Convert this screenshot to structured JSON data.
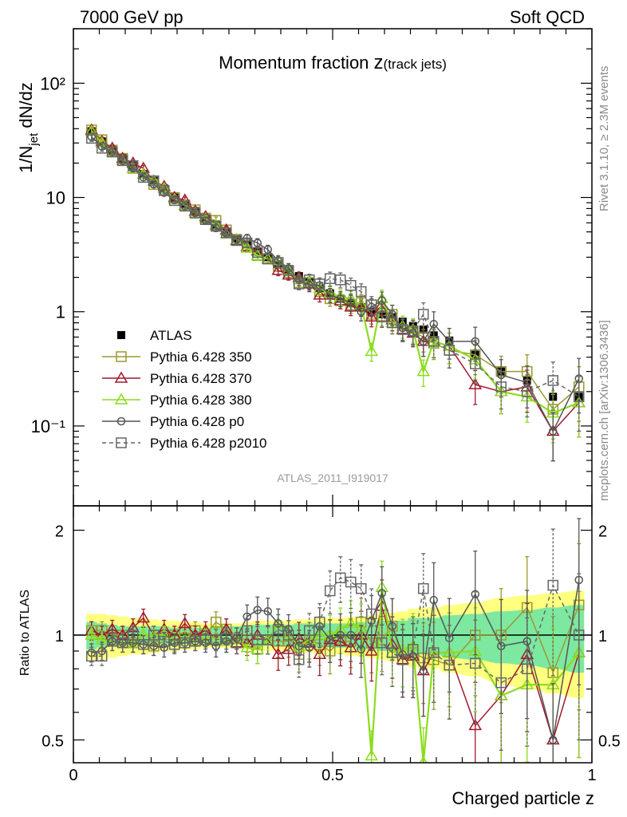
{
  "header": {
    "left_label": "7000 GeV pp",
    "right_label": "Soft QCD"
  },
  "side_labels": {
    "rivet": "Rivet 3.1.10, ≥ 2.3M events",
    "mcplots": "mcplots.cern.ch [arXiv:1306.3436]"
  },
  "chart_data": [
    {
      "type": "line",
      "title_main": "Momentum fraction ",
      "title_var": "z",
      "title_sub": "(track jets)",
      "ylabel_pre": "1/N",
      "ylabel_sub": "jet",
      "ylabel_post": " dN/dz",
      "yscale": "log",
      "ylim": [
        0.02,
        300
      ],
      "xlim": [
        0,
        1
      ],
      "y_tick_labels": [
        "10⁻¹",
        "1",
        "10",
        "10²"
      ],
      "watermark": "ATLAS_2011_I919017",
      "x": [
        0.035,
        0.055,
        0.075,
        0.095,
        0.115,
        0.135,
        0.155,
        0.175,
        0.195,
        0.215,
        0.235,
        0.255,
        0.275,
        0.295,
        0.315,
        0.335,
        0.355,
        0.375,
        0.395,
        0.415,
        0.435,
        0.455,
        0.475,
        0.495,
        0.515,
        0.535,
        0.555,
        0.575,
        0.595,
        0.615,
        0.635,
        0.655,
        0.675,
        0.695,
        0.725,
        0.775,
        0.825,
        0.875,
        0.925,
        0.975
      ],
      "series": [
        {
          "name": "ATLAS",
          "color": "#000000",
          "marker": "filled-square",
          "dashed": false,
          "values": [
            38,
            31,
            26,
            22,
            19,
            16,
            14,
            12,
            10,
            8.8,
            7.6,
            6.6,
            5.8,
            5.0,
            4.4,
            3.9,
            3.4,
            3.0,
            2.6,
            2.3,
            2.05,
            1.85,
            1.6,
            1.45,
            1.3,
            1.2,
            1.1,
            1.0,
            0.95,
            0.9,
            0.82,
            0.75,
            0.7,
            0.62,
            0.56,
            0.42,
            0.3,
            0.25,
            0.18,
            0.18
          ]
        },
        {
          "name": "Pythia 6.428 350",
          "color": "#9a9a30",
          "marker": "open-square",
          "dashed": false,
          "values": [
            39,
            32,
            26,
            22,
            18,
            15,
            13,
            11.5,
            10,
            8.6,
            7.8,
            6.6,
            6.3,
            5.2,
            4.3,
            3.8,
            3.1,
            2.9,
            2.5,
            2.2,
            1.8,
            1.8,
            1.5,
            1.3,
            1.25,
            1.15,
            1.2,
            0.95,
            0.92,
            0.95,
            0.7,
            0.67,
            0.6,
            0.53,
            0.46,
            0.42,
            0.3,
            0.3,
            0.14,
            0.22
          ]
        },
        {
          "name": "Pythia 6.428 370",
          "color": "#a0192c",
          "marker": "open-triangle",
          "dashed": false,
          "values": [
            39,
            31,
            27,
            22,
            20,
            18,
            14,
            12.5,
            10,
            9.5,
            7.6,
            6.8,
            5.7,
            5.2,
            4.2,
            3.7,
            3.4,
            2.9,
            2.3,
            2.1,
            2.0,
            1.75,
            1.4,
            1.4,
            1.25,
            1.1,
            1.1,
            0.9,
            1.15,
            0.85,
            0.7,
            0.65,
            0.55,
            0.55,
            0.5,
            0.23,
            0.2,
            0.22,
            0.09,
            0.16
          ]
        },
        {
          "name": "Pythia 6.428 380",
          "color": "#8bdc1e",
          "marker": "open-triangle",
          "dashed": false,
          "values": [
            38,
            30,
            25,
            21,
            18,
            16,
            14,
            12,
            9.6,
            8.5,
            7.3,
            6.5,
            5.7,
            4.8,
            4.3,
            3.6,
            3.1,
            2.9,
            2.8,
            2.3,
            1.9,
            1.8,
            1.6,
            1.45,
            1.35,
            1.3,
            1.15,
            0.45,
            1.3,
            0.8,
            0.75,
            0.7,
            0.3,
            0.55,
            0.5,
            0.38,
            0.2,
            0.18,
            0.13,
            0.16
          ]
        },
        {
          "name": "Pythia 6.428 p0",
          "color": "#555555",
          "marker": "open-circle",
          "dashed": false,
          "values": [
            34,
            28,
            25,
            21,
            18,
            15,
            13,
            11,
            9.5,
            8.4,
            7.3,
            6.3,
            5.4,
            4.8,
            4.3,
            4.4,
            4.0,
            3.5,
            2.8,
            2.4,
            1.9,
            1.7,
            1.7,
            1.4,
            1.3,
            1.2,
            1.0,
            1.1,
            1.25,
            0.95,
            0.72,
            0.65,
            0.55,
            0.78,
            0.55,
            0.55,
            0.28,
            0.24,
            0.09,
            0.26
          ]
        },
        {
          "name": "Pythia 6.428 p2010",
          "color": "#666666",
          "marker": "open-square",
          "dashed": true,
          "values": [
            33,
            27,
            25,
            21,
            19,
            15,
            14,
            11.5,
            9.4,
            8.4,
            7.3,
            6.4,
            5.6,
            4.9,
            4.2,
            4.0,
            3.3,
            2.9,
            2.7,
            2.3,
            1.75,
            1.9,
            1.75,
            1.95,
            1.9,
            1.7,
            1.5,
            1.15,
            0.9,
            0.8,
            0.7,
            0.68,
            0.95,
            0.55,
            0.46,
            0.35,
            0.22,
            0.2,
            0.25,
            0.18
          ]
        }
      ]
    },
    {
      "type": "line",
      "ylabel": "Ratio to ATLAS",
      "xlabel": "Charged particle z",
      "yscale": "log",
      "ylim": [
        0.43,
        2.35
      ],
      "xlim": [
        0,
        1
      ],
      "y_tick_labels": [
        "0.5",
        "1",
        "2"
      ],
      "x_tick_labels": [
        "0",
        "0.5",
        "1"
      ],
      "band_inner": [
        0.09,
        0.08,
        0.07,
        0.06,
        0.06,
        0.06,
        0.06,
        0.06,
        0.05,
        0.05,
        0.05,
        0.05,
        0.06,
        0.06,
        0.06,
        0.06,
        0.07,
        0.07,
        0.07,
        0.07,
        0.08,
        0.08,
        0.08,
        0.08,
        0.08,
        0.08,
        0.09,
        0.09,
        0.1,
        0.1,
        0.1,
        0.12,
        0.12,
        0.12,
        0.14,
        0.15,
        0.17,
        0.18,
        0.2,
        0.22
      ],
      "band_outer": [
        0.15,
        0.15,
        0.14,
        0.13,
        0.12,
        0.12,
        0.11,
        0.1,
        0.1,
        0.09,
        0.09,
        0.08,
        0.08,
        0.08,
        0.08,
        0.09,
        0.1,
        0.1,
        0.1,
        0.1,
        0.11,
        0.11,
        0.12,
        0.12,
        0.12,
        0.13,
        0.13,
        0.14,
        0.15,
        0.16,
        0.17,
        0.19,
        0.2,
        0.2,
        0.22,
        0.24,
        0.28,
        0.3,
        0.32,
        0.34
      ],
      "series": [
        {
          "name": "Pythia 6.428 350",
          "values": [
            1.03,
            1.03,
            1.0,
            1.0,
            0.95,
            0.94,
            0.93,
            0.96,
            1.0,
            0.98,
            1.03,
            1.0,
            1.09,
            1.04,
            0.98,
            0.97,
            0.91,
            0.97,
            0.96,
            0.96,
            0.88,
            0.97,
            0.94,
            0.9,
            0.96,
            0.96,
            1.09,
            0.95,
            0.97,
            1.06,
            0.85,
            0.89,
            0.86,
            0.85,
            0.82,
            1.0,
            1.0,
            1.2,
            0.78,
            1.22
          ]
        },
        {
          "name": "Pythia 6.428 370",
          "values": [
            1.03,
            1.0,
            1.04,
            1.0,
            1.05,
            1.12,
            1.0,
            1.04,
            1.0,
            1.08,
            1.0,
            1.03,
            0.98,
            1.04,
            0.95,
            0.95,
            1.0,
            0.97,
            0.88,
            0.91,
            0.98,
            0.95,
            0.88,
            0.97,
            0.96,
            0.92,
            1.0,
            0.9,
            1.21,
            0.94,
            0.85,
            0.87,
            0.79,
            0.89,
            0.89,
            0.55,
            0.67,
            0.88,
            0.5,
            0.89
          ]
        },
        {
          "name": "Pythia 6.428 380",
          "values": [
            1.0,
            0.97,
            0.96,
            0.95,
            0.95,
            1.0,
            1.0,
            1.0,
            0.96,
            0.97,
            0.96,
            0.98,
            0.98,
            0.96,
            0.98,
            0.92,
            0.91,
            0.97,
            1.08,
            1.0,
            0.93,
            0.97,
            1.0,
            1.0,
            1.04,
            1.08,
            1.05,
            0.45,
            1.37,
            0.89,
            0.91,
            0.93,
            0.43,
            0.89,
            0.89,
            0.9,
            0.67,
            0.72,
            0.72,
            0.89
          ]
        },
        {
          "name": "Pythia 6.428 p0",
          "values": [
            0.89,
            0.9,
            0.96,
            0.95,
            0.95,
            0.94,
            0.93,
            0.92,
            0.95,
            0.95,
            0.96,
            0.95,
            0.93,
            0.96,
            0.98,
            1.13,
            1.18,
            1.17,
            1.08,
            1.04,
            0.93,
            0.92,
            1.06,
            0.97,
            1.0,
            1.0,
            0.91,
            1.1,
            1.32,
            1.06,
            0.88,
            0.87,
            0.79,
            1.26,
            0.98,
            1.31,
            0.93,
            0.96,
            0.5,
            1.44
          ]
        },
        {
          "name": "Pythia 6.428 p2010",
          "values": [
            0.87,
            0.87,
            0.96,
            0.95,
            1.0,
            0.94,
            1.0,
            0.96,
            0.94,
            0.95,
            0.96,
            0.97,
            0.97,
            0.98,
            0.95,
            1.03,
            0.97,
            0.97,
            1.04,
            1.0,
            0.85,
            1.03,
            1.09,
            1.34,
            1.46,
            1.42,
            1.36,
            1.15,
            0.95,
            0.89,
            0.85,
            0.91,
            1.36,
            0.89,
            0.82,
            0.83,
            0.73,
            0.8,
            1.39,
            1.0
          ]
        }
      ]
    }
  ]
}
